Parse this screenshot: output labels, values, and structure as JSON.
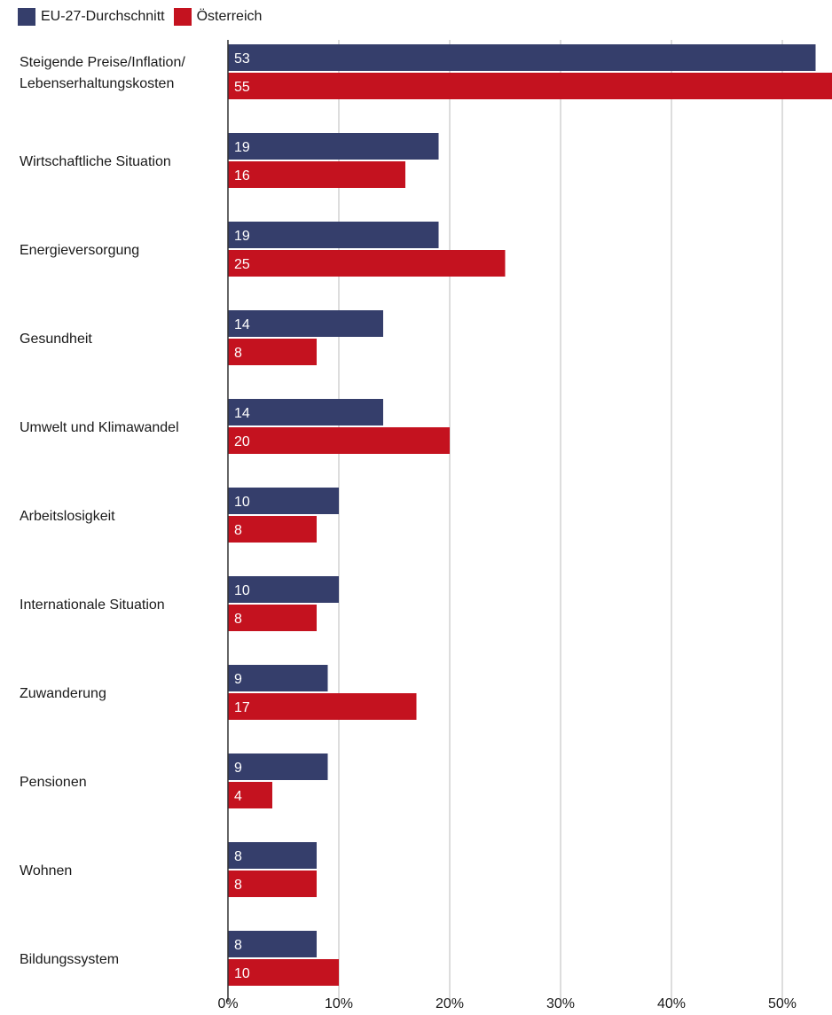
{
  "colors": {
    "eu": "#353e6b",
    "at": "#c4121f",
    "grid": "#dddddd",
    "axis": "#333333",
    "text": "#1a1a1a",
    "bar_label": "#ffffff"
  },
  "chart_data": {
    "type": "bar",
    "orientation": "horizontal",
    "legend_position": "top-left",
    "grid": true,
    "categories": [
      [
        "Steigende Preise/Inflation/",
        "Lebenserhaltungskosten"
      ],
      [
        "Wirtschaftliche Situation"
      ],
      [
        "Energieversorgung"
      ],
      [
        "Gesundheit"
      ],
      [
        "Umwelt und Klimawandel"
      ],
      [
        "Arbeitslosigkeit"
      ],
      [
        "Internationale Situation"
      ],
      [
        "Zuwanderung"
      ],
      [
        "Pensionen"
      ],
      [
        "Wohnen"
      ],
      [
        "Bildungssystem"
      ]
    ],
    "series": [
      {
        "name": "EU-27-Durchschnitt",
        "values": [
          53,
          19,
          19,
          14,
          14,
          10,
          10,
          9,
          9,
          8,
          8
        ]
      },
      {
        "name": "Österreich",
        "values": [
          55,
          16,
          25,
          8,
          20,
          8,
          8,
          17,
          4,
          8,
          10
        ]
      }
    ],
    "xlim": [
      0,
      54
    ],
    "x_ticks": [
      0,
      10,
      20,
      30,
      40,
      50
    ],
    "x_tick_labels": [
      "0%",
      "10%",
      "20%",
      "30%",
      "40%",
      "50%"
    ]
  }
}
